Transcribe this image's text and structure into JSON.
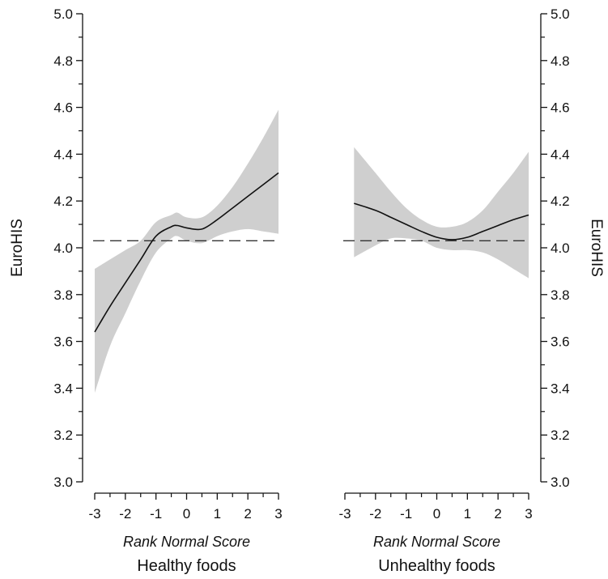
{
  "chart_data": {
    "type": "line",
    "ylabel": "EuroHIS",
    "ylim": [
      3.0,
      5.0
    ],
    "yticks": [
      "3.0",
      "3.2",
      "3.4",
      "3.6",
      "3.8",
      "4.0",
      "4.2",
      "4.4",
      "4.6",
      "4.8",
      "5.0"
    ],
    "xlim": [
      -3,
      3
    ],
    "xticks": [
      "-3",
      "-2",
      "-1",
      "0",
      "1",
      "2",
      "3"
    ],
    "reference_line": 4.03,
    "panels": [
      {
        "xlabel": "Rank Normal Score",
        "subtitle": "Healthy foods",
        "x": [
          -3.0,
          -2.5,
          -2.0,
          -1.5,
          -1.0,
          -0.5,
          -0.3,
          0.0,
          0.5,
          1.0,
          1.5,
          2.0,
          2.5,
          3.0
        ],
        "y": [
          3.64,
          3.75,
          3.85,
          3.95,
          4.05,
          4.09,
          4.095,
          4.085,
          4.08,
          4.12,
          4.17,
          4.22,
          4.27,
          4.32
        ],
        "lower": [
          3.38,
          3.58,
          3.72,
          3.86,
          3.98,
          4.04,
          4.05,
          4.03,
          4.02,
          4.05,
          4.07,
          4.08,
          4.07,
          4.06
        ],
        "upper": [
          3.91,
          3.95,
          3.99,
          4.03,
          4.11,
          4.14,
          4.15,
          4.13,
          4.13,
          4.18,
          4.26,
          4.36,
          4.47,
          4.59
        ]
      },
      {
        "xlabel": "Rank Normal Score",
        "subtitle": "Unhealthy foods",
        "x": [
          -2.7,
          -2.0,
          -1.5,
          -1.0,
          -0.5,
          0.0,
          0.5,
          1.0,
          1.5,
          2.0,
          2.5,
          3.0
        ],
        "y": [
          4.19,
          4.16,
          4.13,
          4.1,
          4.07,
          4.045,
          4.035,
          4.045,
          4.07,
          4.095,
          4.12,
          4.14
        ],
        "lower": [
          3.96,
          4.01,
          4.04,
          4.04,
          4.03,
          4.0,
          3.99,
          3.99,
          3.98,
          3.95,
          3.91,
          3.87
        ],
        "upper": [
          4.43,
          4.32,
          4.24,
          4.17,
          4.12,
          4.09,
          4.09,
          4.11,
          4.16,
          4.24,
          4.32,
          4.41
        ]
      }
    ]
  }
}
